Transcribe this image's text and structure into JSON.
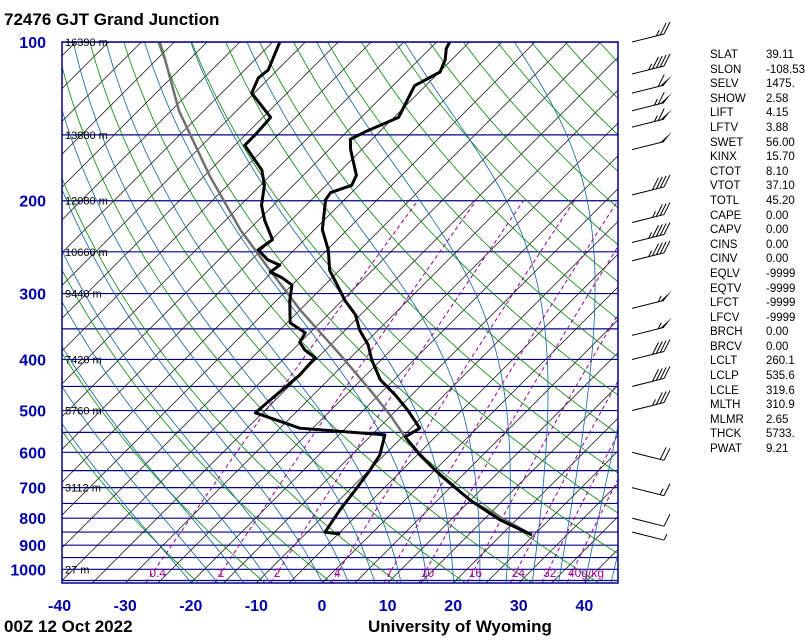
{
  "header": {
    "title": "72476 GJT Grand Junction"
  },
  "footer": {
    "time": "00Z 12 Oct 2022",
    "source": "University of Wyoming"
  },
  "colors": {
    "axis": "#00008b",
    "isobar": "#00008b",
    "isotherm": "#000000",
    "dry_adiabat": "#008800",
    "moist_adiabat": "#1060a0",
    "mixing_ratio": "#990099",
    "profile": "#000000",
    "parcel": "#707070",
    "label": "#0000aa"
  },
  "stats": [
    {
      "k": "SLAT",
      "v": "39.11"
    },
    {
      "k": "SLON",
      "v": "-108.53"
    },
    {
      "k": "SELV",
      "v": "1475."
    },
    {
      "k": "SHOW",
      "v": "2.58"
    },
    {
      "k": "LIFT",
      "v": "4.15"
    },
    {
      "k": "LFTV",
      "v": "3.88"
    },
    {
      "k": "SWET",
      "v": "56.00"
    },
    {
      "k": "KINX",
      "v": "15.70"
    },
    {
      "k": "CTOT",
      "v": "8.10"
    },
    {
      "k": "VTOT",
      "v": "37.10"
    },
    {
      "k": "TOTL",
      "v": "45.20"
    },
    {
      "k": "CAPE",
      "v": "0.00"
    },
    {
      "k": "CAPV",
      "v": "0.00"
    },
    {
      "k": "CINS",
      "v": "0.00"
    },
    {
      "k": "CINV",
      "v": "0.00"
    },
    {
      "k": "EQLV",
      "v": "-9999"
    },
    {
      "k": "EQTV",
      "v": "-9999"
    },
    {
      "k": "LFCT",
      "v": "-9999"
    },
    {
      "k": "LFCV",
      "v": "-9999"
    },
    {
      "k": "BRCH",
      "v": "0.00"
    },
    {
      "k": "BRCV",
      "v": "0.00"
    },
    {
      "k": "LCLT",
      "v": "260.1"
    },
    {
      "k": "LCLP",
      "v": "535.6"
    },
    {
      "k": "LCLE",
      "v": "319.6"
    },
    {
      "k": "MLTH",
      "v": "310.9"
    },
    {
      "k": "MLMR",
      "v": "2.65"
    },
    {
      "k": "THCK",
      "v": "5733."
    },
    {
      "k": "PWAT",
      "v": "9.21"
    }
  ],
  "chart_data": {
    "type": "skew-t",
    "title": "72476 GJT Grand Junction",
    "pressure_ticks": [
      100,
      200,
      300,
      400,
      500,
      600,
      700,
      800,
      900,
      1000
    ],
    "pressure_tick_labels": [
      "100",
      "200",
      "300",
      "400",
      "500",
      "600",
      "700",
      "800",
      "900",
      "1000"
    ],
    "temperature_ticks": [
      -40,
      -30,
      -20,
      -10,
      0,
      10,
      20,
      30,
      40
    ],
    "temperature_tick_labels": [
      "-40",
      "-30",
      "-20",
      "-10",
      "0",
      "10",
      "20",
      "30",
      "40"
    ],
    "ylim_hpa": [
      1061,
      100
    ],
    "xlim_c_at_bottom": [
      -40,
      45
    ],
    "heights": [
      {
        "p": 100,
        "label": "16390 m"
      },
      {
        "p": 150,
        "label": "13880 m"
      },
      {
        "p": 200,
        "label": "12080 m"
      },
      {
        "p": 250,
        "label": "10660 m"
      },
      {
        "p": 300,
        "label": "9440 m"
      },
      {
        "p": 400,
        "label": "7420 m"
      },
      {
        "p": 500,
        "label": "5760 m"
      },
      {
        "p": 700,
        "label": "3112 m"
      },
      {
        "p": 1000,
        "label": "27 m"
      }
    ],
    "mixing_ratios": [
      0.4,
      1,
      2,
      4,
      7,
      10,
      16,
      24,
      32,
      40
    ],
    "mixing_ratio_labels": [
      "0.4",
      "1",
      "2",
      "4",
      "7",
      "10",
      "16",
      "24",
      "32",
      "40g/kg"
    ],
    "temperature": [
      [
        861,
        24.7
      ],
      [
        806,
        17.5
      ],
      [
        739,
        9.9
      ],
      [
        662,
        1.5
      ],
      [
        607,
        -4.6
      ],
      [
        561,
        -9.6
      ],
      [
        540,
        -8.7
      ],
      [
        499,
        -13.3
      ],
      [
        467,
        -17.5
      ],
      [
        437,
        -22.1
      ],
      [
        401,
        -26.4
      ],
      [
        375,
        -29.3
      ],
      [
        352,
        -32.8
      ],
      [
        329,
        -35.8
      ],
      [
        309,
        -39.6
      ],
      [
        289,
        -43.1
      ],
      [
        271,
        -46.5
      ],
      [
        248,
        -49.8
      ],
      [
        227,
        -53.8
      ],
      [
        199,
        -57.9
      ],
      [
        193,
        -58.2
      ],
      [
        187,
        -56.1
      ],
      [
        179,
        -56.9
      ],
      [
        160,
        -61.7
      ],
      [
        153,
        -63.3
      ],
      [
        148,
        -62.2
      ],
      [
        139,
        -59.3
      ],
      [
        126,
        -61.0
      ],
      [
        121,
        -61.7
      ],
      [
        114,
        -59.9
      ],
      [
        108,
        -61.0
      ],
      [
        103,
        -62.5
      ],
      [
        100,
        -63.0
      ]
    ],
    "dewpoint": [
      [
        857,
        -4.7
      ],
      [
        850,
        -7.3
      ],
      [
        772,
        -8.4
      ],
      [
        707,
        -9.1
      ],
      [
        648,
        -9.9
      ],
      [
        607,
        -10.7
      ],
      [
        556,
        -13.0
      ],
      [
        540,
        -27.0
      ],
      [
        528,
        -30.0
      ],
      [
        505,
        -36.1
      ],
      [
        478,
        -35.8
      ],
      [
        428,
        -35.1
      ],
      [
        397,
        -35.4
      ],
      [
        384,
        -38.1
      ],
      [
        371,
        -40.1
      ],
      [
        356,
        -40.7
      ],
      [
        341,
        -44.5
      ],
      [
        309,
        -48.0
      ],
      [
        289,
        -50.0
      ],
      [
        280,
        -52.6
      ],
      [
        273,
        -55.3
      ],
      [
        265,
        -54.9
      ],
      [
        259,
        -57.5
      ],
      [
        248,
        -60.5
      ],
      [
        237,
        -59.9
      ],
      [
        218,
        -64.0
      ],
      [
        204,
        -66.8
      ],
      [
        187,
        -69.4
      ],
      [
        175,
        -72.1
      ],
      [
        157,
        -78.5
      ],
      [
        150,
        -78.5
      ],
      [
        139,
        -78.8
      ],
      [
        125,
        -85.4
      ],
      [
        117,
        -86.7
      ],
      [
        113,
        -86.4
      ],
      [
        100,
        -88.9
      ]
    ],
    "parcel": [
      [
        861,
        24.7
      ],
      [
        739,
        9.9
      ],
      [
        634,
        -1.5
      ],
      [
        561,
        -9.6
      ],
      [
        510,
        -15.2
      ],
      [
        457,
        -22.1
      ],
      [
        392,
        -32.0
      ],
      [
        322,
        -45.0
      ],
      [
        271,
        -55.6
      ],
      [
        227,
        -66.3
      ],
      [
        179,
        -79.3
      ],
      [
        135,
        -93.8
      ],
      [
        108,
        -103.7
      ],
      [
        100,
        -107.2
      ]
    ],
    "wind_barbs_kt": [
      [
        100,
        25
      ],
      [
        115,
        45
      ],
      [
        125,
        60
      ],
      [
        135,
        65
      ],
      [
        145,
        65
      ],
      [
        160,
        50
      ],
      [
        195,
        40
      ],
      [
        220,
        35
      ],
      [
        240,
        45
      ],
      [
        260,
        45
      ],
      [
        320,
        55
      ],
      [
        360,
        55
      ],
      [
        400,
        40
      ],
      [
        450,
        40
      ],
      [
        500,
        35
      ],
      [
        600,
        20
      ],
      [
        700,
        15
      ],
      [
        800,
        10
      ],
      [
        850,
        5
      ]
    ]
  }
}
